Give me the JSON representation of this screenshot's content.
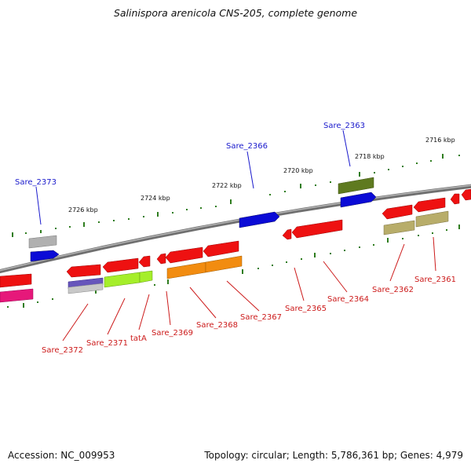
{
  "title": "Salinispora arenicola CNS-205, complete genome",
  "footer": {
    "accession": "Accession: NC_009953",
    "summary": "Topology: circular; Length: 5,786,361 bp; Genes: 4,979"
  },
  "scale_labels": [
    "2726 kbp",
    "2724 kbp",
    "2722 kbp",
    "2720 kbp",
    "2718 kbp",
    "2716 kbp"
  ],
  "colors": {
    "backbone": "#8a8a8a",
    "tick": "#2f7d1f",
    "forward_label": "#1a1acc",
    "reverse_label": "#cc1a1a"
  },
  "forward_labels": [
    "Sare_2373",
    "Sare_2366",
    "Sare_2363"
  ],
  "reverse_labels": [
    "Sare_2372",
    "Sare_2371",
    "tatA",
    "Sare_2369",
    "Sare_2368",
    "Sare_2367",
    "Sare_2365",
    "Sare_2364",
    "Sare_2362",
    "Sare_2361"
  ]
}
